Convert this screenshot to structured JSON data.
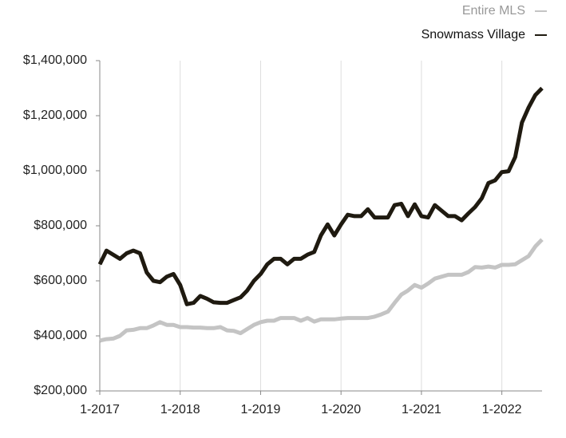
{
  "chart_data": {
    "type": "line",
    "categories": [
      "1-2017",
      null,
      null,
      null,
      null,
      null,
      null,
      null,
      null,
      null,
      null,
      null,
      "1-2018",
      null,
      null,
      null,
      null,
      null,
      null,
      null,
      null,
      null,
      null,
      null,
      "1-2019",
      null,
      null,
      null,
      null,
      null,
      null,
      null,
      null,
      null,
      null,
      null,
      "1-2020",
      null,
      null,
      null,
      null,
      null,
      null,
      null,
      null,
      null,
      null,
      null,
      "1-2021",
      null,
      null,
      null,
      null,
      null,
      null,
      null,
      null,
      null,
      null,
      null,
      "1-2022",
      null,
      null,
      null,
      null,
      null,
      null
    ],
    "series": [
      {
        "name": "Entire MLS",
        "color": "#c4c4c4",
        "values": [
          383000,
          388000,
          390000,
          400000,
          420000,
          422000,
          428000,
          428000,
          438000,
          450000,
          440000,
          440000,
          432000,
          432000,
          430000,
          430000,
          428000,
          428000,
          432000,
          420000,
          418000,
          410000,
          425000,
          440000,
          450000,
          455000,
          455000,
          465000,
          465000,
          465000,
          455000,
          465000,
          452000,
          460000,
          460000,
          460000,
          463000,
          465000,
          465000,
          465000,
          465000,
          470000,
          478000,
          488000,
          520000,
          550000,
          565000,
          585000,
          575000,
          590000,
          608000,
          615000,
          622000,
          622000,
          622000,
          632000,
          650000,
          648000,
          652000,
          648000,
          658000,
          658000,
          660000,
          675000,
          690000,
          725000,
          750000
        ]
      },
      {
        "name": "Snowmass Village",
        "color": "#1f1a10",
        "values": [
          660000,
          710000,
          695000,
          680000,
          700000,
          710000,
          700000,
          630000,
          600000,
          595000,
          615000,
          625000,
          585000,
          515000,
          520000,
          545000,
          535000,
          522000,
          520000,
          520000,
          530000,
          540000,
          565000,
          600000,
          625000,
          660000,
          680000,
          680000,
          660000,
          680000,
          680000,
          695000,
          705000,
          765000,
          805000,
          765000,
          805000,
          840000,
          835000,
          835000,
          860000,
          830000,
          830000,
          830000,
          875000,
          880000,
          835000,
          878000,
          835000,
          830000,
          875000,
          855000,
          835000,
          835000,
          820000,
          845000,
          868000,
          900000,
          955000,
          965000,
          995000,
          998000,
          1050000,
          1175000,
          1230000,
          1275000,
          1300000
        ]
      }
    ],
    "ylim": [
      200000,
      1400000
    ],
    "yticks": [
      {
        "value": 200000,
        "label": "$200,000"
      },
      {
        "value": 400000,
        "label": "$400,000"
      },
      {
        "value": 600000,
        "label": "$600,000"
      },
      {
        "value": 800000,
        "label": "$800,000"
      },
      {
        "value": 1000000,
        "label": "$1,000,000"
      },
      {
        "value": 1200000,
        "label": "$1,200,000"
      },
      {
        "value": 1400000,
        "label": "$1,400,000"
      }
    ],
    "legend": "top-right"
  }
}
